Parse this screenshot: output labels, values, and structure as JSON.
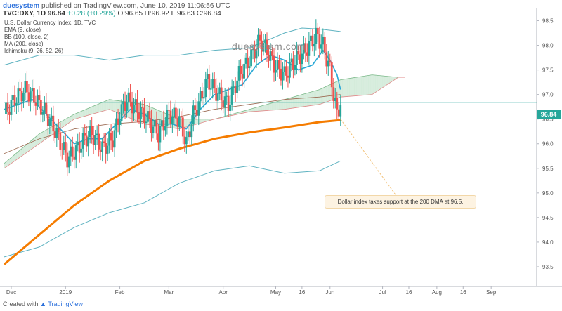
{
  "header": {
    "author": "duesystem",
    "published": "published on TradingView.com, June 10, 2019 11:06:56 UTC",
    "symbol": "TVC:DXY, 1D",
    "last": "96.84",
    "change": "+0.28 (+0.29%)",
    "ohlc": "O:96.65 H:96.92 L:96.63 C:96.84"
  },
  "legend": {
    "title": "U.S. Dollar Currency Index, 1D, TVC",
    "items": [
      "EMA (9, close)",
      "BB (100, close, 2)",
      "MA (200, close)",
      "Ichimoku (9, 26, 52, 26)"
    ]
  },
  "watermark": "duesystem.com",
  "annotation": "Dollar index takes support at the 200 DMA at 96.5.",
  "price_tag": "96.84",
  "footer": {
    "prefix": "Created with",
    "brand": "TradingView"
  },
  "colors": {
    "up": "#26a69a",
    "down": "#ef5350",
    "ema": "#26a7d6",
    "ma200": "#f57c00",
    "bb": "#5fb3c1",
    "cloud_bull": "#cfe9d6",
    "cloud_bear": "#f8d3d3"
  },
  "chart_data": {
    "type": "line",
    "title": "U.S. Dollar Currency Index, 1D, TVC",
    "ylim": [
      93.1,
      98.75
    ],
    "y_ticks": [
      "93.5",
      "94.0",
      "94.5",
      "95.0",
      "95.5",
      "96.0",
      "96.5",
      "97.0",
      "97.5",
      "98.0",
      "98.5"
    ],
    "x_range_days": [
      0,
      304
    ],
    "x_ticks": [
      {
        "label": "Dec",
        "day": 4
      },
      {
        "label": "2019",
        "day": 35
      },
      {
        "label": "Feb",
        "day": 66
      },
      {
        "label": "Mar",
        "day": 94
      },
      {
        "label": "Apr",
        "day": 125
      },
      {
        "label": "May",
        "day": 155
      },
      {
        "label": "16",
        "day": 170
      },
      {
        "label": "Jun",
        "day": 186
      },
      {
        "label": "Jul",
        "day": 216
      },
      {
        "label": "16",
        "day": 231
      },
      {
        "label": "Aug",
        "day": 247
      },
      {
        "label": "16",
        "day": 262
      },
      {
        "label": "Sep",
        "day": 278
      }
    ],
    "series": [
      {
        "name": "Price",
        "x": [
          0,
          6,
          12,
          18,
          24,
          30,
          36,
          42,
          46,
          50,
          56,
          62,
          66,
          70,
          76,
          82,
          88,
          94,
          100,
          104,
          108,
          112,
          116,
          122,
          128,
          134,
          140,
          146,
          150,
          154,
          160,
          166,
          172,
          178,
          182,
          186,
          188,
          190,
          192
        ],
        "values": [
          96.6,
          96.9,
          97.1,
          96.9,
          96.6,
          96.2,
          95.7,
          95.9,
          96.1,
          96.2,
          95.9,
          96.1,
          96.6,
          96.9,
          96.7,
          96.5,
          96.2,
          96.6,
          96.5,
          96.0,
          96.6,
          96.9,
          97.3,
          97.0,
          96.8,
          97.4,
          97.7,
          98.1,
          97.9,
          97.6,
          97.4,
          97.7,
          97.9,
          98.2,
          98.0,
          97.5,
          97.0,
          96.6,
          96.84
        ]
      },
      {
        "name": "EMA (9, close)",
        "x": [
          0,
          8,
          16,
          24,
          32,
          40,
          48,
          56,
          64,
          72,
          80,
          88,
          96,
          104,
          112,
          120,
          128,
          136,
          144,
          152,
          160,
          168,
          176,
          182,
          186,
          190,
          192
        ],
        "values": [
          96.7,
          96.8,
          96.9,
          96.6,
          96.3,
          96.0,
          96.1,
          96.1,
          96.4,
          96.7,
          96.6,
          96.4,
          96.4,
          96.3,
          96.7,
          97.0,
          97.1,
          97.2,
          97.6,
          97.8,
          97.7,
          97.5,
          97.6,
          97.9,
          97.7,
          97.4,
          97.1
        ]
      },
      {
        "name": "MA (200, close)",
        "x": [
          0,
          20,
          40,
          60,
          80,
          100,
          120,
          140,
          160,
          180,
          192
        ],
        "values": [
          93.55,
          94.15,
          94.75,
          95.25,
          95.65,
          95.9,
          96.1,
          96.23,
          96.33,
          96.44,
          96.48
        ]
      },
      {
        "name": "BB upper",
        "x": [
          0,
          20,
          40,
          60,
          80,
          100,
          120,
          140,
          150,
          160,
          170,
          180,
          192
        ],
        "values": [
          97.6,
          97.8,
          97.8,
          97.7,
          97.8,
          97.8,
          97.9,
          97.95,
          98.1,
          98.25,
          98.35,
          98.33,
          98.28
        ]
      },
      {
        "name": "BB basis",
        "x": [
          0,
          20,
          40,
          60,
          80,
          100,
          120,
          140,
          160,
          180,
          192
        ],
        "values": [
          95.8,
          96.1,
          96.3,
          96.4,
          96.45,
          96.55,
          96.7,
          96.8,
          96.9,
          96.95,
          97.0
        ]
      },
      {
        "name": "BB lower",
        "x": [
          0,
          20,
          40,
          60,
          80,
          100,
          120,
          140,
          160,
          180,
          192
        ],
        "values": [
          93.7,
          93.9,
          94.3,
          94.6,
          94.8,
          95.2,
          95.45,
          95.55,
          95.4,
          95.45,
          95.65
        ]
      },
      {
        "name": "Cloud span A",
        "x": [
          0,
          20,
          40,
          60,
          80,
          100,
          120,
          140,
          160,
          180,
          192,
          210,
          225,
          229
        ],
        "values": [
          95.6,
          96.2,
          96.6,
          96.9,
          96.8,
          96.5,
          96.5,
          96.7,
          96.9,
          97.1,
          97.3,
          97.4,
          97.35,
          97.35
        ]
      },
      {
        "name": "Cloud span B",
        "x": [
          0,
          20,
          40,
          60,
          80,
          100,
          120,
          140,
          160,
          180,
          192,
          210,
          225,
          229
        ],
        "values": [
          95.5,
          96.0,
          96.5,
          96.7,
          96.4,
          96.3,
          96.5,
          96.65,
          96.7,
          96.8,
          96.95,
          97.0,
          97.35,
          97.35
        ]
      }
    ],
    "last_price": 96.84
  }
}
